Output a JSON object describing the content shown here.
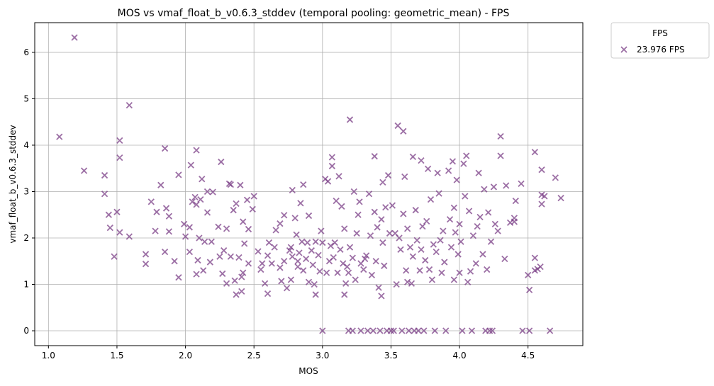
{
  "chart_data": {
    "type": "scatter",
    "title": "MOS vs vmaf_float_b_v0.6.3_stddev (temporal pooling: geometric_mean) - FPS",
    "xlabel": "MOS",
    "ylabel": "vmaf_float_b_v0.6.3_stddev",
    "xlim": [
      0.9,
      4.9
    ],
    "ylim": [
      -0.32,
      6.64
    ],
    "xticks": [
      "1.0",
      "1.5",
      "2.0",
      "2.5",
      "3.0",
      "3.5",
      "4.0",
      "4.5"
    ],
    "yticks": [
      "0",
      "1",
      "2",
      "3",
      "4",
      "5",
      "6"
    ],
    "grid": true,
    "legend": {
      "title": "FPS",
      "placement": "outside-top-right"
    },
    "series": [
      {
        "name": "23.976 FPS",
        "color": "#7b3f87",
        "marker": "x",
        "points": [
          [
            1.08,
            4.18
          ],
          [
            1.19,
            6.32
          ],
          [
            1.26,
            3.45
          ],
          [
            1.41,
            3.35
          ],
          [
            1.41,
            2.95
          ],
          [
            1.44,
            2.5
          ],
          [
            1.45,
            2.22
          ],
          [
            1.48,
            1.6
          ],
          [
            1.5,
            2.56
          ],
          [
            1.52,
            4.1
          ],
          [
            1.52,
            3.73
          ],
          [
            1.52,
            2.12
          ],
          [
            1.59,
            4.86
          ],
          [
            1.59,
            2.03
          ],
          [
            1.71,
            1.65
          ],
          [
            1.71,
            1.44
          ],
          [
            1.75,
            2.78
          ],
          [
            1.78,
            2.15
          ],
          [
            1.79,
            2.56
          ],
          [
            1.82,
            3.14
          ],
          [
            1.85,
            1.7
          ],
          [
            1.85,
            3.93
          ],
          [
            1.86,
            2.64
          ],
          [
            1.88,
            2.14
          ],
          [
            1.88,
            2.47
          ],
          [
            1.92,
            1.5
          ],
          [
            1.95,
            1.15
          ],
          [
            1.95,
            3.36
          ],
          [
            1.99,
            2.3
          ],
          [
            2.0,
            2.03
          ],
          [
            2.03,
            2.23
          ],
          [
            2.03,
            1.7
          ],
          [
            2.04,
            3.57
          ],
          [
            2.05,
            2.78
          ],
          [
            2.07,
            2.88
          ],
          [
            2.08,
            3.89
          ],
          [
            2.08,
            2.72
          ],
          [
            2.08,
            1.22
          ],
          [
            2.09,
            1.52
          ],
          [
            2.1,
            2.0
          ],
          [
            2.11,
            2.83
          ],
          [
            2.12,
            3.27
          ],
          [
            2.13,
            1.3
          ],
          [
            2.14,
            1.92
          ],
          [
            2.16,
            2.55
          ],
          [
            2.16,
            3.0
          ],
          [
            2.18,
            1.48
          ],
          [
            2.19,
            1.92
          ],
          [
            2.2,
            2.99
          ],
          [
            2.24,
            2.24
          ],
          [
            2.25,
            1.6
          ],
          [
            2.26,
            3.64
          ],
          [
            2.27,
            1.23
          ],
          [
            2.28,
            1.73
          ],
          [
            2.3,
            1.02
          ],
          [
            2.3,
            2.2
          ],
          [
            2.32,
            3.17
          ],
          [
            2.33,
            3.15
          ],
          [
            2.33,
            1.6
          ],
          [
            2.35,
            2.6
          ],
          [
            2.36,
            1.08
          ],
          [
            2.37,
            2.74
          ],
          [
            2.37,
            0.78
          ],
          [
            2.39,
            1.58
          ],
          [
            2.4,
            3.14
          ],
          [
            2.41,
            1.16
          ],
          [
            2.41,
            0.85
          ],
          [
            2.42,
            2.35
          ],
          [
            2.42,
            1.25
          ],
          [
            2.43,
            1.88
          ],
          [
            2.45,
            2.82
          ],
          [
            2.46,
            2.19
          ],
          [
            2.46,
            1.45
          ],
          [
            2.49,
            2.62
          ],
          [
            2.5,
            2.9
          ],
          [
            2.53,
            1.71
          ],
          [
            2.55,
            1.32
          ],
          [
            2.56,
            1.45
          ],
          [
            2.58,
            1.02
          ],
          [
            2.6,
            0.8
          ],
          [
            2.6,
            1.62
          ],
          [
            2.61,
            1.9
          ],
          [
            2.63,
            1.45
          ],
          [
            2.65,
            1.8
          ],
          [
            2.66,
            2.17
          ],
          [
            2.69,
            2.31
          ],
          [
            2.69,
            1.36
          ],
          [
            2.7,
            1.07
          ],
          [
            2.72,
            1.5
          ],
          [
            2.72,
            2.49
          ],
          [
            2.74,
            0.92
          ],
          [
            2.76,
            1.73
          ],
          [
            2.77,
            1.8
          ],
          [
            2.77,
            1.1
          ],
          [
            2.78,
            3.03
          ],
          [
            2.78,
            1.6
          ],
          [
            2.8,
            2.43
          ],
          [
            2.81,
            2.07
          ],
          [
            2.82,
            1.38
          ],
          [
            2.82,
            1.5
          ],
          [
            2.83,
            1.68
          ],
          [
            2.84,
            2.75
          ],
          [
            2.85,
            1.92
          ],
          [
            2.86,
            3.15
          ],
          [
            2.86,
            1.3
          ],
          [
            2.88,
            1.55
          ],
          [
            2.89,
            1.9
          ],
          [
            2.9,
            1.05
          ],
          [
            2.9,
            2.48
          ],
          [
            2.92,
            1.73
          ],
          [
            2.93,
            1.42
          ],
          [
            2.94,
            1.0
          ],
          [
            2.95,
            0.78
          ],
          [
            2.95,
            1.92
          ],
          [
            2.97,
            1.63
          ],
          [
            2.98,
            1.28
          ],
          [
            2.99,
            2.15
          ],
          [
            3.0,
            0.0
          ],
          [
            3.0,
            1.9
          ],
          [
            3.02,
            3.27
          ],
          [
            3.03,
            1.25
          ],
          [
            3.04,
            3.22
          ],
          [
            3.05,
            1.5
          ],
          [
            3.06,
            1.83
          ],
          [
            3.07,
            3.74
          ],
          [
            3.07,
            3.55
          ],
          [
            3.08,
            1.58
          ],
          [
            3.09,
            1.9
          ],
          [
            3.1,
            2.8
          ],
          [
            3.11,
            1.25
          ],
          [
            3.12,
            3.33
          ],
          [
            3.13,
            1.75
          ],
          [
            3.14,
            2.68
          ],
          [
            3.15,
            1.45
          ],
          [
            3.16,
            0.78
          ],
          [
            3.16,
            2.2
          ],
          [
            3.17,
            1.02
          ],
          [
            3.18,
            1.38
          ],
          [
            3.19,
            0.0
          ],
          [
            3.19,
            1.25
          ],
          [
            3.2,
            4.55
          ],
          [
            3.2,
            1.8
          ],
          [
            3.22,
            1.57
          ],
          [
            3.22,
            0.0
          ],
          [
            3.23,
            3.0
          ],
          [
            3.24,
            1.1
          ],
          [
            3.25,
            2.1
          ],
          [
            3.26,
            2.5
          ],
          [
            3.27,
            2.78
          ],
          [
            3.28,
            1.45
          ],
          [
            3.28,
            0.0
          ],
          [
            3.3,
            1.32
          ],
          [
            3.31,
            1.55
          ],
          [
            3.32,
            1.62
          ],
          [
            3.33,
            0.0
          ],
          [
            3.34,
            2.95
          ],
          [
            3.35,
            2.05
          ],
          [
            3.36,
            1.2
          ],
          [
            3.37,
            0.0
          ],
          [
            3.38,
            3.76
          ],
          [
            3.38,
            2.56
          ],
          [
            3.39,
            1.5
          ],
          [
            3.4,
            2.23
          ],
          [
            3.41,
            0.93
          ],
          [
            3.42,
            0.0
          ],
          [
            3.43,
            2.4
          ],
          [
            3.43,
            0.75
          ],
          [
            3.44,
            3.2
          ],
          [
            3.44,
            1.9
          ],
          [
            3.45,
            1.4
          ],
          [
            3.46,
            2.66
          ],
          [
            3.47,
            0.0
          ],
          [
            3.48,
            3.35
          ],
          [
            3.49,
            2.1
          ],
          [
            3.5,
            0.0
          ],
          [
            3.51,
            2.7
          ],
          [
            3.52,
            0.0
          ],
          [
            3.53,
            2.1
          ],
          [
            3.54,
            1.0
          ],
          [
            3.55,
            4.42
          ],
          [
            3.56,
            2.0
          ],
          [
            3.57,
            1.75
          ],
          [
            3.58,
            0.0
          ],
          [
            3.59,
            4.3
          ],
          [
            3.59,
            2.52
          ],
          [
            3.6,
            3.32
          ],
          [
            3.61,
            1.3
          ],
          [
            3.62,
            2.2
          ],
          [
            3.62,
            1.05
          ],
          [
            3.63,
            0.0
          ],
          [
            3.64,
            1.8
          ],
          [
            3.65,
            1.02
          ],
          [
            3.66,
            3.75
          ],
          [
            3.66,
            1.6
          ],
          [
            3.67,
            0.0
          ],
          [
            3.68,
            2.6
          ],
          [
            3.69,
            1.95
          ],
          [
            3.7,
            0.0
          ],
          [
            3.71,
            1.3
          ],
          [
            3.72,
            3.67
          ],
          [
            3.72,
            1.75
          ],
          [
            3.73,
            2.25
          ],
          [
            3.74,
            0.0
          ],
          [
            3.75,
            1.52
          ],
          [
            3.76,
            2.36
          ],
          [
            3.77,
            3.49
          ],
          [
            3.78,
            1.32
          ],
          [
            3.79,
            2.83
          ],
          [
            3.8,
            1.1
          ],
          [
            3.81,
            1.86
          ],
          [
            3.82,
            0.0
          ],
          [
            3.83,
            1.7
          ],
          [
            3.84,
            3.4
          ],
          [
            3.85,
            2.96
          ],
          [
            3.86,
            1.95
          ],
          [
            3.87,
            1.25
          ],
          [
            3.88,
            2.15
          ],
          [
            3.89,
            1.48
          ],
          [
            3.9,
            0.0
          ],
          [
            3.92,
            3.45
          ],
          [
            3.93,
            2.4
          ],
          [
            3.94,
            1.8
          ],
          [
            3.95,
            3.65
          ],
          [
            3.96,
            2.65
          ],
          [
            3.96,
            1.1
          ],
          [
            3.97,
            2.12
          ],
          [
            3.98,
            3.25
          ],
          [
            3.99,
            1.65
          ],
          [
            4.0,
            1.25
          ],
          [
            4.0,
            2.3
          ],
          [
            4.01,
            1.92
          ],
          [
            4.02,
            0.0
          ],
          [
            4.03,
            3.6
          ],
          [
            4.04,
            2.9
          ],
          [
            4.05,
            3.77
          ],
          [
            4.06,
            1.05
          ],
          [
            4.07,
            2.58
          ],
          [
            4.08,
            1.28
          ],
          [
            4.09,
            0.0
          ],
          [
            4.1,
            2.05
          ],
          [
            4.12,
            1.45
          ],
          [
            4.13,
            2.25
          ],
          [
            4.14,
            3.4
          ],
          [
            4.15,
            2.45
          ],
          [
            4.17,
            1.65
          ],
          [
            4.18,
            3.05
          ],
          [
            4.19,
            0.0
          ],
          [
            4.2,
            1.32
          ],
          [
            4.21,
            2.55
          ],
          [
            4.22,
            0.0
          ],
          [
            4.23,
            1.92
          ],
          [
            4.24,
            0.0
          ],
          [
            4.25,
            3.1
          ],
          [
            4.26,
            2.3
          ],
          [
            4.28,
            2.15
          ],
          [
            4.3,
            4.19
          ],
          [
            4.3,
            3.77
          ],
          [
            4.33,
            1.55
          ],
          [
            4.34,
            3.13
          ],
          [
            4.37,
            2.33
          ],
          [
            4.4,
            2.43
          ],
          [
            4.41,
            2.8
          ],
          [
            4.45,
            3.17
          ],
          [
            4.46,
            0.0
          ],
          [
            4.5,
            1.2
          ],
          [
            4.51,
            0.88
          ],
          [
            4.51,
            0.0
          ],
          [
            4.55,
            3.85
          ],
          [
            4.55,
            1.57
          ],
          [
            4.57,
            1.33
          ],
          [
            4.59,
            1.38
          ],
          [
            4.6,
            2.93
          ],
          [
            4.6,
            3.47
          ],
          [
            4.6,
            2.73
          ],
          [
            4.62,
            2.9
          ],
          [
            4.66,
            0.0
          ],
          [
            4.7,
            3.3
          ],
          [
            4.74,
            2.86
          ],
          [
            4.55,
            1.3
          ],
          [
            4.4,
            2.35
          ]
        ]
      }
    ]
  }
}
